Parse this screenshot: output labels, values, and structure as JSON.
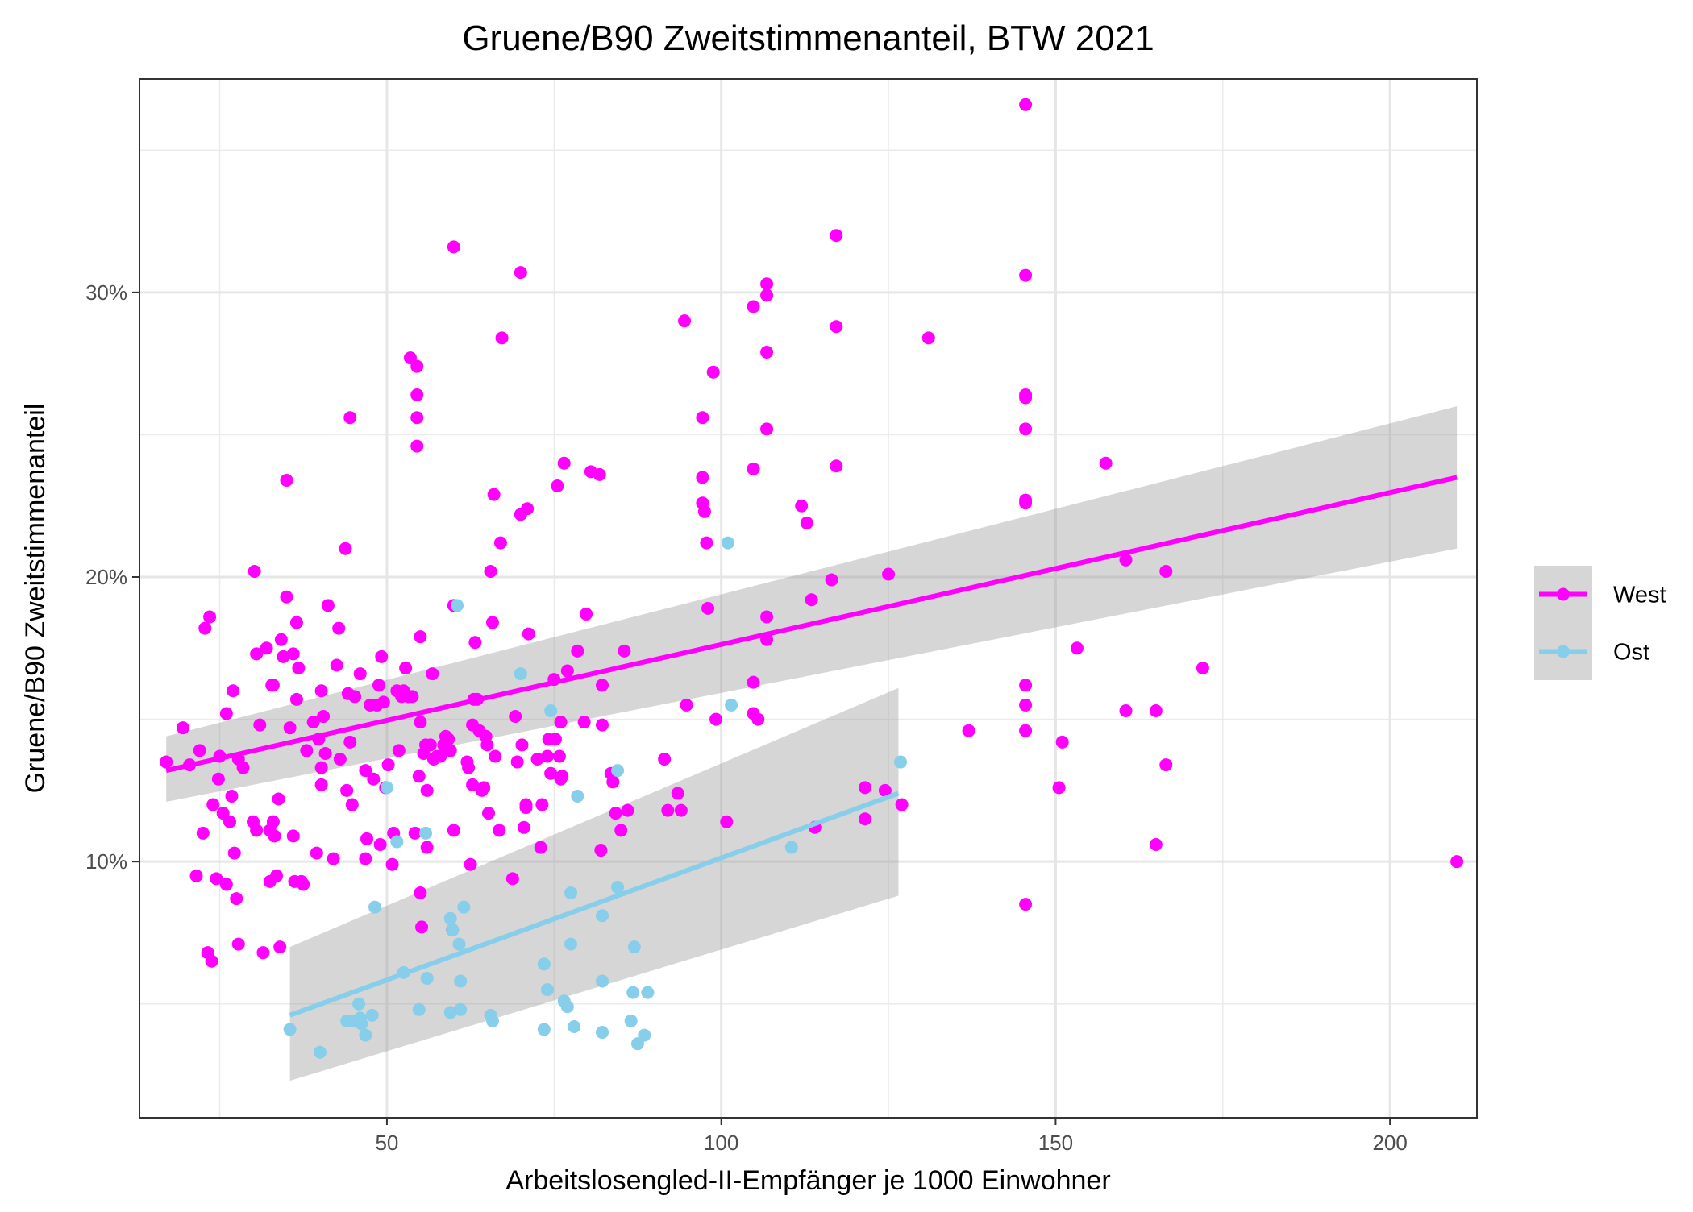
{
  "chart_data": {
    "type": "scatter",
    "title": "Gruene/B90 Zweitstimmenanteil, BTW 2021",
    "xlabel": "Arbeitslosengled-II-Empfänger je 1000 Einwohner",
    "ylabel": "Gruene/B90 Zweitstimmenanteil",
    "xlim": [
      13,
      213
    ],
    "ylim": [
      1,
      37.5
    ],
    "x_ticks": [
      50,
      100,
      150,
      200
    ],
    "x_tick_labels": [
      "50",
      "100",
      "150",
      "200"
    ],
    "y_ticks": [
      10,
      20,
      30
    ],
    "y_tick_labels": [
      "10%",
      "20%",
      "30%"
    ],
    "x_minor_ticks": [
      25,
      75,
      125,
      175
    ],
    "y_minor_ticks": [
      5,
      15,
      25,
      35
    ],
    "grid": true,
    "legend_position": "right",
    "series": [
      {
        "name": "West",
        "color": "#ff00ff",
        "points": [
          [
            17,
            13.5
          ],
          [
            19.5,
            14.7
          ],
          [
            20.5,
            13.4
          ],
          [
            21.5,
            9.5
          ],
          [
            22,
            13.9
          ],
          [
            22.5,
            11.0
          ],
          [
            22.8,
            18.2
          ],
          [
            23.2,
            6.8
          ],
          [
            23.5,
            18.6
          ],
          [
            23.8,
            6.5
          ],
          [
            24,
            12.0
          ],
          [
            24.5,
            9.4
          ],
          [
            24.8,
            12.9
          ],
          [
            25,
            13.7
          ],
          [
            25.5,
            11.7
          ],
          [
            26,
            9.2
          ],
          [
            26,
            15.2
          ],
          [
            26.5,
            11.4
          ],
          [
            26.8,
            12.3
          ],
          [
            27,
            16.0
          ],
          [
            27.2,
            10.3
          ],
          [
            27.5,
            8.7
          ],
          [
            27.8,
            13.6
          ],
          [
            27.8,
            7.1
          ],
          [
            28.5,
            13.3
          ],
          [
            30,
            11.4
          ],
          [
            30.2,
            20.2
          ],
          [
            30.5,
            11.1
          ],
          [
            30.5,
            17.3
          ],
          [
            31,
            14.8
          ],
          [
            31.5,
            6.8
          ],
          [
            32,
            17.5
          ],
          [
            32.5,
            11.1
          ],
          [
            32.5,
            9.3
          ],
          [
            32.8,
            16.2
          ],
          [
            33,
            11.4
          ],
          [
            33,
            16.2
          ],
          [
            33.2,
            10.9
          ],
          [
            33.5,
            9.5
          ],
          [
            33.8,
            12.2
          ],
          [
            34,
            7.0
          ],
          [
            34.2,
            17.8
          ],
          [
            34.5,
            17.2
          ],
          [
            35,
            19.3
          ],
          [
            35,
            23.4
          ],
          [
            35.5,
            14.7
          ],
          [
            36,
            17.3
          ],
          [
            36,
            10.9
          ],
          [
            36.2,
            9.3
          ],
          [
            36.5,
            15.7
          ],
          [
            36.5,
            18.4
          ],
          [
            36.8,
            16.8
          ],
          [
            37.2,
            9.3
          ],
          [
            37.5,
            9.2
          ],
          [
            38,
            13.9
          ],
          [
            39,
            14.9
          ],
          [
            39.5,
            10.3
          ],
          [
            39.8,
            14.3
          ],
          [
            40.2,
            12.7
          ],
          [
            40.2,
            13.3
          ],
          [
            40.2,
            16.0
          ],
          [
            40.5,
            15.1
          ],
          [
            40.8,
            13.8
          ],
          [
            41.2,
            19.0
          ],
          [
            42,
            10.1
          ],
          [
            42.5,
            16.9
          ],
          [
            42.8,
            18.2
          ],
          [
            43,
            13.6
          ],
          [
            43.8,
            21.0
          ],
          [
            44,
            12.5
          ],
          [
            44.2,
            15.9
          ],
          [
            44.5,
            25.6
          ],
          [
            44.5,
            14.2
          ],
          [
            44.8,
            12.0
          ],
          [
            45.2,
            15.8
          ],
          [
            46,
            16.6
          ],
          [
            46.8,
            10.1
          ],
          [
            46.8,
            13.2
          ],
          [
            47,
            10.8
          ],
          [
            47.5,
            15.5
          ],
          [
            48,
            12.9
          ],
          [
            48.5,
            15.5
          ],
          [
            48.8,
            16.2
          ],
          [
            49,
            10.6
          ],
          [
            49.2,
            17.2
          ],
          [
            49.5,
            15.6
          ],
          [
            49.8,
            12.6
          ],
          [
            50.2,
            13.4
          ],
          [
            50.8,
            9.9
          ],
          [
            51,
            11.0
          ],
          [
            51.5,
            16.0
          ],
          [
            51.8,
            13.9
          ],
          [
            52.2,
            15.8
          ],
          [
            52.5,
            16.0
          ],
          [
            52.8,
            16.8
          ],
          [
            53.2,
            15.8
          ],
          [
            53.5,
            27.7
          ],
          [
            53.8,
            15.8
          ],
          [
            54.2,
            11.0
          ],
          [
            54.5,
            26.4
          ],
          [
            54.5,
            27.4
          ],
          [
            54.5,
            25.6
          ],
          [
            54.5,
            24.6
          ],
          [
            54.8,
            13.0
          ],
          [
            55,
            14.9
          ],
          [
            55,
            17.9
          ],
          [
            55,
            8.9
          ],
          [
            55.2,
            7.7
          ],
          [
            55.5,
            13.8
          ],
          [
            55.8,
            14.1
          ],
          [
            56,
            10.5
          ],
          [
            56,
            12.5
          ],
          [
            56.5,
            14.1
          ],
          [
            56.8,
            16.6
          ],
          [
            57,
            13.6
          ],
          [
            57.5,
            13.7
          ],
          [
            58,
            13.7
          ],
          [
            58.5,
            14.1
          ],
          [
            58.8,
            14.4
          ],
          [
            59.2,
            14.3
          ],
          [
            59.5,
            13.9
          ],
          [
            59.8,
            7.6
          ],
          [
            60,
            31.6
          ],
          [
            60,
            19.0
          ],
          [
            60,
            11.1
          ],
          [
            62,
            13.5
          ],
          [
            62.2,
            13.3
          ],
          [
            62.5,
            9.9
          ],
          [
            62.8,
            12.7
          ],
          [
            62.8,
            14.8
          ],
          [
            63,
            15.7
          ],
          [
            63.2,
            17.7
          ],
          [
            63.5,
            15.7
          ],
          [
            63.8,
            14.6
          ],
          [
            64.2,
            12.5
          ],
          [
            64.5,
            12.6
          ],
          [
            64.8,
            14.4
          ],
          [
            65,
            14.1
          ],
          [
            65.2,
            11.7
          ],
          [
            65.5,
            20.2
          ],
          [
            65.8,
            18.4
          ],
          [
            66,
            22.9
          ],
          [
            66.2,
            13.7
          ],
          [
            66.8,
            11.1
          ],
          [
            67,
            21.2
          ],
          [
            67.2,
            28.4
          ],
          [
            68.8,
            9.4
          ],
          [
            69.2,
            15.1
          ],
          [
            69.5,
            13.5
          ],
          [
            70,
            30.7
          ],
          [
            70,
            22.2
          ],
          [
            70.2,
            14.1
          ],
          [
            70.5,
            11.2
          ],
          [
            70.8,
            11.9
          ],
          [
            70.8,
            12.0
          ],
          [
            71,
            22.4
          ],
          [
            71.2,
            18.0
          ],
          [
            72.5,
            13.6
          ],
          [
            73,
            10.5
          ],
          [
            73.2,
            12.0
          ],
          [
            74,
            13.7
          ],
          [
            74.2,
            14.3
          ],
          [
            74.5,
            13.1
          ],
          [
            75,
            16.4
          ],
          [
            75.2,
            14.3
          ],
          [
            75.5,
            23.2
          ],
          [
            75.8,
            13.7
          ],
          [
            76,
            14.9
          ],
          [
            76,
            12.9
          ],
          [
            76.2,
            13.0
          ],
          [
            76.5,
            24.0
          ],
          [
            77,
            16.7
          ],
          [
            78.5,
            17.4
          ],
          [
            79.5,
            14.9
          ],
          [
            79.8,
            18.7
          ],
          [
            80.5,
            23.7
          ],
          [
            81.8,
            23.6
          ],
          [
            82,
            10.4
          ],
          [
            82.2,
            14.8
          ],
          [
            82.2,
            16.2
          ],
          [
            83.5,
            13.1
          ],
          [
            83.8,
            12.8
          ],
          [
            84.2,
            11.7
          ],
          [
            85,
            11.1
          ],
          [
            85.5,
            17.4
          ],
          [
            86,
            11.8
          ],
          [
            91.5,
            13.6
          ],
          [
            92,
            11.8
          ],
          [
            93.5,
            12.4
          ],
          [
            94,
            11.8
          ],
          [
            94.5,
            29.0
          ],
          [
            94.8,
            15.5
          ],
          [
            97.2,
            25.6
          ],
          [
            97.2,
            23.5
          ],
          [
            97.2,
            22.6
          ],
          [
            97.5,
            22.3
          ],
          [
            97.8,
            21.2
          ],
          [
            98,
            18.9
          ],
          [
            98.8,
            27.2
          ],
          [
            99.2,
            15.0
          ],
          [
            100.8,
            11.4
          ],
          [
            104.8,
            23.8
          ],
          [
            104.8,
            29.5
          ],
          [
            104.8,
            16.3
          ],
          [
            104.8,
            15.2
          ],
          [
            105.5,
            15.0
          ],
          [
            106.8,
            30.3
          ],
          [
            106.8,
            29.9
          ],
          [
            106.8,
            27.9
          ],
          [
            106.8,
            25.2
          ],
          [
            106.8,
            18.6
          ],
          [
            106.8,
            17.8
          ],
          [
            112,
            22.5
          ],
          [
            112.8,
            21.9
          ],
          [
            113.5,
            19.2
          ],
          [
            114,
            11.2
          ],
          [
            116.5,
            19.9
          ],
          [
            117.2,
            28.8
          ],
          [
            117.2,
            32.0
          ],
          [
            117.2,
            23.9
          ],
          [
            121.5,
            11.5
          ],
          [
            121.5,
            12.6
          ],
          [
            124.5,
            12.5
          ],
          [
            125,
            20.1
          ],
          [
            127,
            12.0
          ],
          [
            131,
            28.4
          ],
          [
            137,
            14.6
          ],
          [
            145.5,
            36.6
          ],
          [
            145.5,
            30.6
          ],
          [
            145.5,
            26.4
          ],
          [
            145.5,
            26.3
          ],
          [
            145.5,
            25.2
          ],
          [
            145.5,
            22.7
          ],
          [
            145.5,
            22.6
          ],
          [
            145.5,
            16.2
          ],
          [
            145.5,
            15.5
          ],
          [
            145.5,
            14.6
          ],
          [
            145.5,
            8.5
          ],
          [
            150.5,
            12.6
          ],
          [
            151,
            14.2
          ],
          [
            153.2,
            17.5
          ],
          [
            157.5,
            24.0
          ],
          [
            160.5,
            20.6
          ],
          [
            160.5,
            15.3
          ],
          [
            165,
            10.6
          ],
          [
            165,
            15.3
          ],
          [
            166.5,
            13.4
          ],
          [
            166.5,
            20.2
          ],
          [
            172,
            16.8
          ],
          [
            210,
            10.0
          ]
        ],
        "fit_line": [
          [
            17,
            13.2
          ],
          [
            210,
            23.5
          ]
        ],
        "ci_band": [
          [
            17,
            14.4,
            12.1
          ],
          [
            210,
            26.0,
            21.0
          ]
        ]
      },
      {
        "name": "Ost",
        "color": "#87ceeb",
        "points": [
          [
            35.5,
            4.1
          ],
          [
            40,
            3.3
          ],
          [
            44,
            4.4
          ],
          [
            45,
            4.4
          ],
          [
            45.8,
            5.0
          ],
          [
            46,
            4.5
          ],
          [
            46.2,
            4.3
          ],
          [
            46.8,
            3.9
          ],
          [
            47.8,
            4.6
          ],
          [
            48.2,
            8.4
          ],
          [
            50,
            12.6
          ],
          [
            51.5,
            10.7
          ],
          [
            52.5,
            6.1
          ],
          [
            54.8,
            4.8
          ],
          [
            55.8,
            11.0
          ],
          [
            56,
            5.9
          ],
          [
            59.5,
            4.7
          ],
          [
            59.5,
            8.0
          ],
          [
            59.8,
            7.6
          ],
          [
            60.5,
            19.0
          ],
          [
            60.8,
            7.1
          ],
          [
            61,
            4.8
          ],
          [
            61,
            5.8
          ],
          [
            61.5,
            8.4
          ],
          [
            65.5,
            4.6
          ],
          [
            65.8,
            4.4
          ],
          [
            70,
            16.6
          ],
          [
            73.5,
            4.1
          ],
          [
            73.5,
            6.4
          ],
          [
            74,
            5.5
          ],
          [
            74.5,
            15.3
          ],
          [
            76.5,
            5.1
          ],
          [
            77,
            4.9
          ],
          [
            77.5,
            8.9
          ],
          [
            77.5,
            7.1
          ],
          [
            78,
            4.2
          ],
          [
            78.5,
            12.3
          ],
          [
            82.2,
            5.8
          ],
          [
            82.2,
            8.1
          ],
          [
            82.2,
            4.0
          ],
          [
            84.5,
            9.1
          ],
          [
            84.5,
            13.2
          ],
          [
            86.5,
            4.4
          ],
          [
            86.8,
            5.4
          ],
          [
            87,
            7.0
          ],
          [
            87.5,
            3.6
          ],
          [
            88.5,
            3.9
          ],
          [
            89,
            5.4
          ],
          [
            101,
            21.2
          ],
          [
            101.5,
            15.5
          ],
          [
            110.5,
            10.5
          ],
          [
            126.8,
            13.5
          ]
        ],
        "fit_line": [
          [
            35.5,
            4.6
          ],
          [
            126.5,
            12.4
          ]
        ],
        "ci_band": [
          [
            35.5,
            7.0,
            2.3
          ],
          [
            126.5,
            16.1,
            8.8
          ]
        ]
      }
    ]
  }
}
